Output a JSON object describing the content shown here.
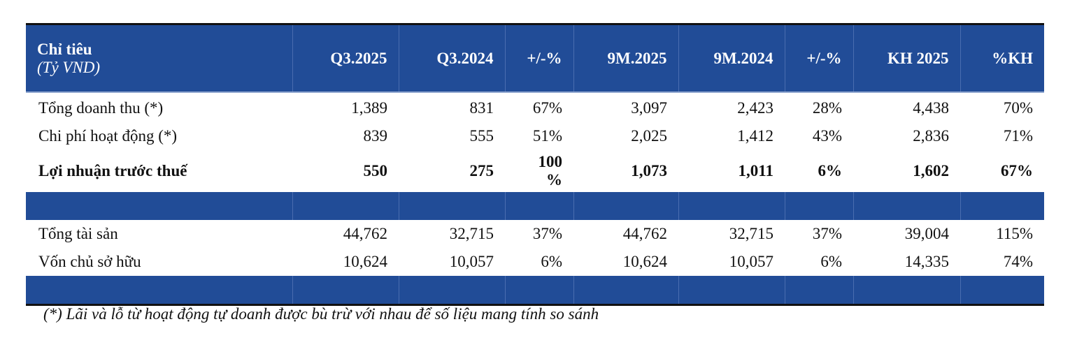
{
  "table": {
    "header": {
      "label": "Chỉ tiêu",
      "unit": "(Tỷ VND)",
      "columns": [
        "Q3.2025",
        "Q3.2024",
        "+/-%",
        "9M.2025",
        "9M.2024",
        "+/-%",
        "KH 2025",
        "%KH"
      ]
    },
    "rows": [
      {
        "label": "Tổng doanh thu (*)",
        "values": [
          "1,389",
          "831",
          "67%",
          "3,097",
          "2,423",
          "28%",
          "4,438",
          "70%"
        ]
      },
      {
        "label": "Chi phí hoạt động (*)",
        "values": [
          "839",
          "555",
          "51%",
          "2,025",
          "1,412",
          "43%",
          "2,836",
          "71%"
        ]
      },
      {
        "label": "Lợi nhuận trước thuế",
        "values": [
          "550",
          "275",
          "100 %",
          "1,073",
          "1,011",
          "6%",
          "1,602",
          "67%"
        ]
      },
      {
        "label": "Tổng tài sản",
        "values": [
          "44,762",
          "32,715",
          "37%",
          "44,762",
          "32,715",
          "37%",
          "39,004",
          "115%"
        ]
      },
      {
        "label": "Vốn chủ sở hữu",
        "values": [
          "10,624",
          "10,057",
          "6%",
          "10,624",
          "10,057",
          "6%",
          "14,335",
          "74%"
        ]
      }
    ]
  },
  "footnote": "(*) Lãi và lỗ từ hoạt động tự doanh được bù trừ với nhau để số liệu mang tính so sánh",
  "colors": {
    "header_bg": "#214C97",
    "text": "#111111"
  }
}
